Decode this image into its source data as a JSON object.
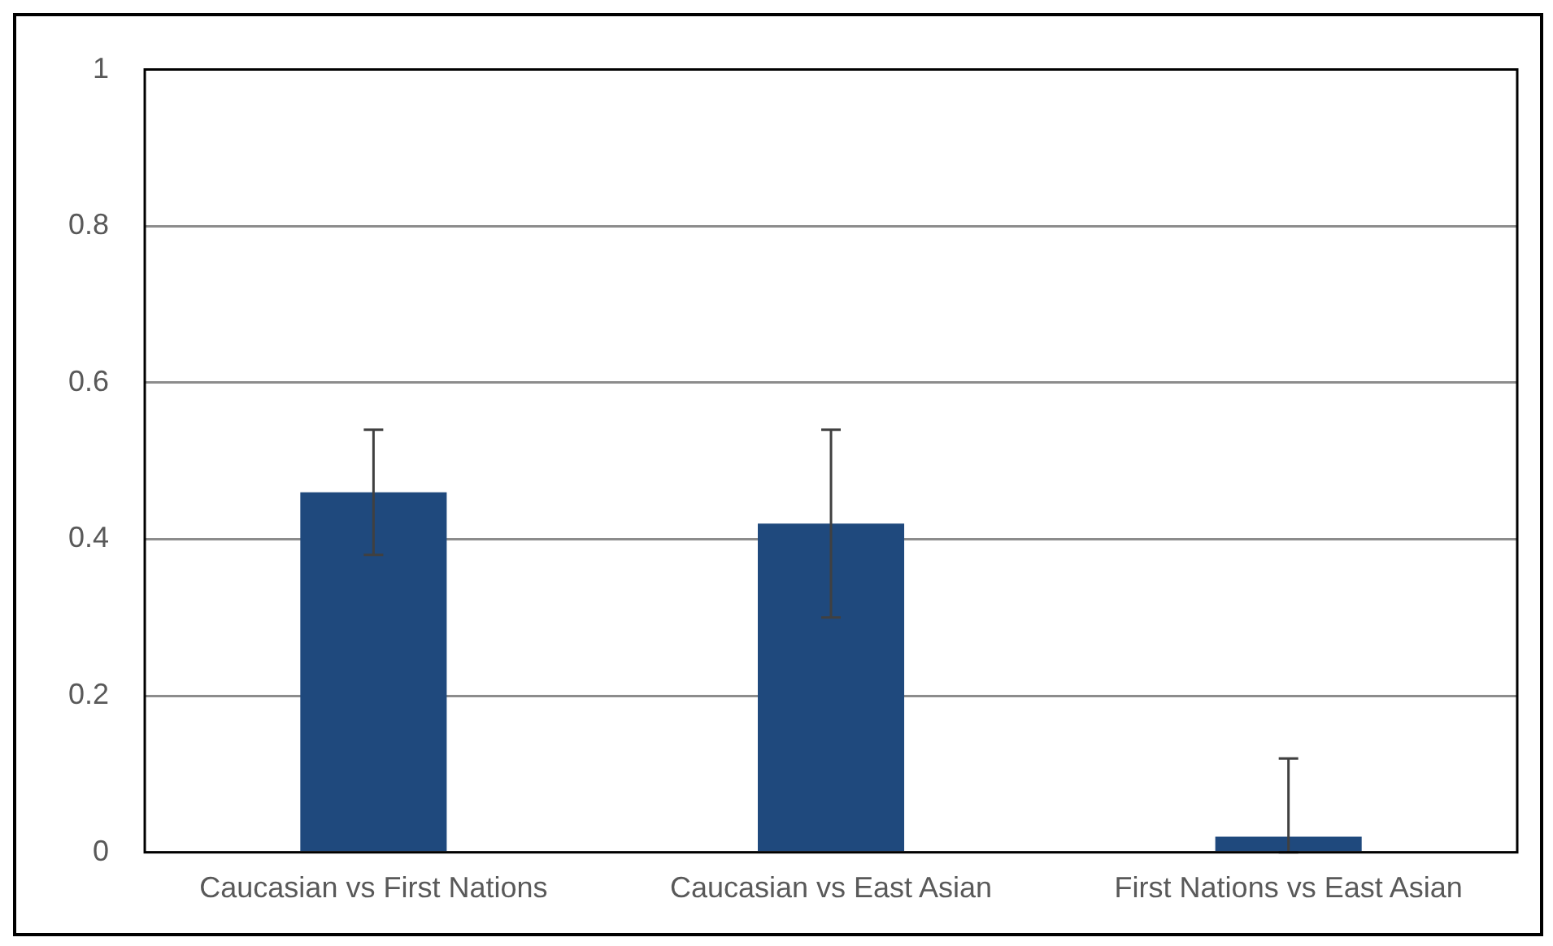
{
  "chart_data": {
    "type": "bar",
    "categories": [
      "Caucasian vs First Nations",
      "Caucasian vs East Asian",
      "First Nations vs East Asian"
    ],
    "values": [
      0.46,
      0.42,
      0.02
    ],
    "color": "#1f497d",
    "errors": [
      [
        0.38,
        0.54
      ],
      [
        0.3,
        0.54
      ],
      [
        0,
        0.12
      ]
    ],
    "ylim": [
      0,
      1
    ],
    "yticks": [
      0,
      0.2,
      0.4,
      0.6,
      0.8,
      1
    ],
    "grid": "y",
    "legend": false
  }
}
